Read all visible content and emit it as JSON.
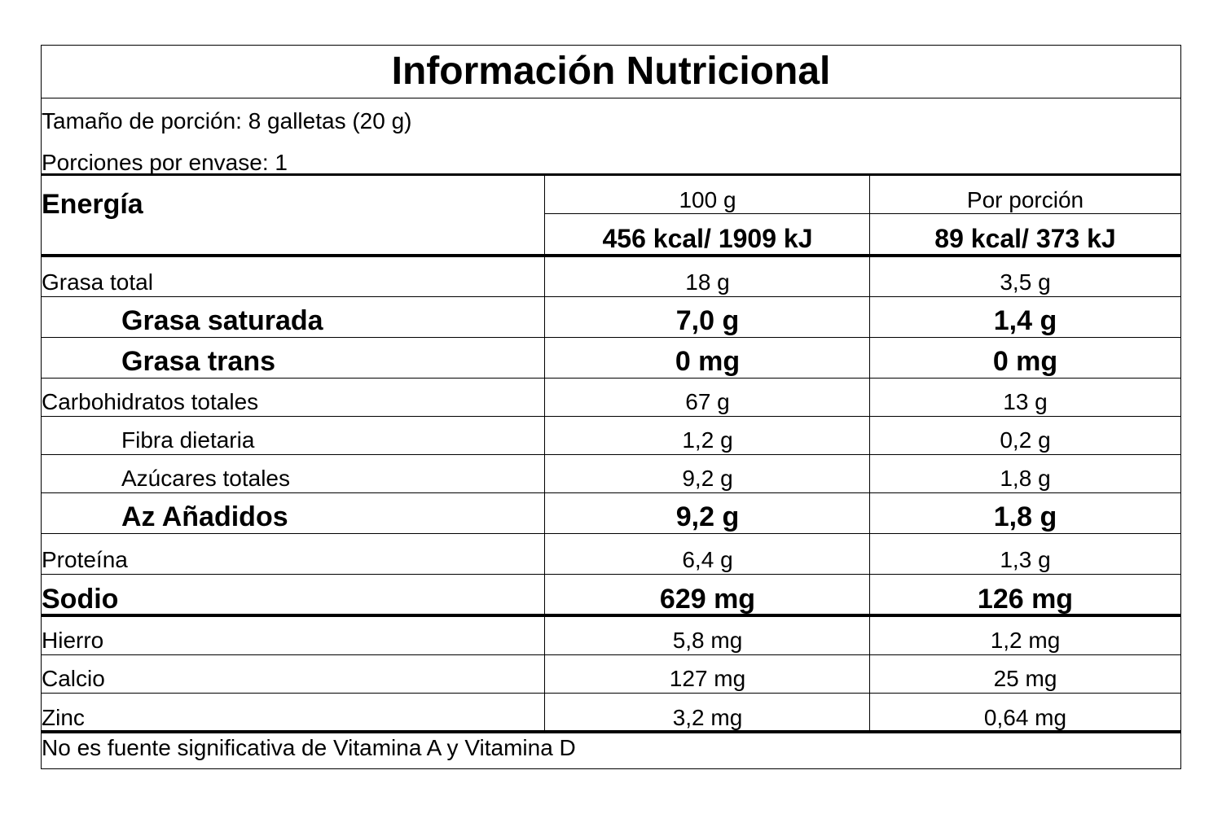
{
  "header": {
    "title": "Información Nutricional",
    "serving_size": "Tamaño de porción: 8 galletas (20 g)",
    "servings_per_container": "Porciones por envase: 1"
  },
  "table": {
    "energy_label": "Energía",
    "columns": [
      "100 g",
      "Por porción"
    ],
    "energy": [
      "456 kcal/ 1909 kJ",
      "89 kcal/ 373 kJ"
    ],
    "rows": [
      {
        "label": "Grasa total",
        "values": [
          "18 g",
          "3,5 g"
        ],
        "bold": false,
        "indent": false
      },
      {
        "label": "Grasa saturada",
        "values": [
          "7,0 g",
          "1,4 g"
        ],
        "bold": true,
        "indent": true
      },
      {
        "label": "Grasa trans",
        "values": [
          "0 mg",
          "0 mg"
        ],
        "bold": true,
        "indent": true
      },
      {
        "label": "Carbohidratos totales",
        "values": [
          "67 g",
          "13 g"
        ],
        "bold": false,
        "indent": false
      },
      {
        "label": "Fibra dietaria",
        "values": [
          "1,2 g",
          "0,2 g"
        ],
        "bold": false,
        "indent": true
      },
      {
        "label": "Azúcares totales",
        "values": [
          "9,2 g",
          "1,8 g"
        ],
        "bold": false,
        "indent": true
      },
      {
        "label": "Az Añadidos",
        "values": [
          "9,2 g",
          "1,8 g"
        ],
        "bold": true,
        "indent": true
      },
      {
        "label": "Proteína",
        "values": [
          "6,4 g",
          "1,3 g"
        ],
        "bold": false,
        "indent": false
      },
      {
        "label": "Sodio",
        "values": [
          "629 mg",
          "126 mg"
        ],
        "bold": true,
        "indent": false
      },
      {
        "label": "Hierro",
        "values": [
          "5,8 mg",
          "1,2 mg"
        ],
        "bold": false,
        "indent": false
      },
      {
        "label": "Calcio",
        "values": [
          "127 mg",
          "25 mg"
        ],
        "bold": false,
        "indent": false
      },
      {
        "label": "Zinc",
        "values": [
          "3,2 mg",
          "0,64 mg"
        ],
        "bold": false,
        "indent": false
      }
    ]
  },
  "footer": "No es fuente significativa de Vitamina A y Vitamina D"
}
